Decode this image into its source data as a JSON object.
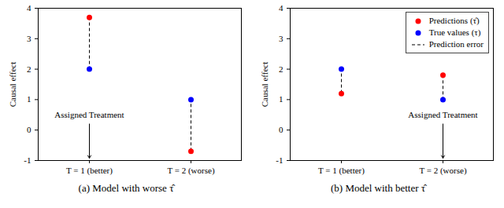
{
  "chart_data": [
    {
      "type": "scatter",
      "title": "(a) Model with worse τ̂",
      "categories": [
        "T = 1 (better)",
        "T = 2 (worse)"
      ],
      "series": [
        {
          "name": "Predictions (τ̂)",
          "color": "#ff0000",
          "marker": "circle",
          "values": [
            3.7,
            -0.7
          ]
        },
        {
          "name": "True values (τ)",
          "color": "#0000ff",
          "marker": "circle",
          "values": [
            2,
            1
          ]
        }
      ],
      "error_lines": {
        "name": "Prediction error",
        "line_style": "dashed"
      },
      "annotations": [
        {
          "text": "Assigned Treatment",
          "x": "T = 1 (better)"
        }
      ],
      "ylabel": "Causal effect",
      "ylim": [
        -1,
        4
      ],
      "yticks": [
        -1,
        0,
        1,
        2,
        3,
        4
      ],
      "grid": false
    },
    {
      "type": "scatter",
      "title": "(b) Model with better τ̂",
      "categories": [
        "T = 1 (better)",
        "T = 2 (worse)"
      ],
      "series": [
        {
          "name": "Predictions (τ̂)",
          "color": "#ff0000",
          "marker": "circle",
          "values": [
            1.2,
            1.8
          ]
        },
        {
          "name": "True values (τ)",
          "color": "#0000ff",
          "marker": "circle",
          "values": [
            2,
            1
          ]
        }
      ],
      "error_lines": {
        "name": "Prediction error",
        "line_style": "dashed"
      },
      "annotations": [
        {
          "text": "Assigned Treatment",
          "x": "T = 2 (worse)"
        }
      ],
      "ylabel": "Causal effect",
      "ylim": [
        -1,
        4
      ],
      "yticks": [
        -1,
        0,
        1,
        2,
        3,
        4
      ],
      "grid": false,
      "legend": "top-right"
    }
  ]
}
